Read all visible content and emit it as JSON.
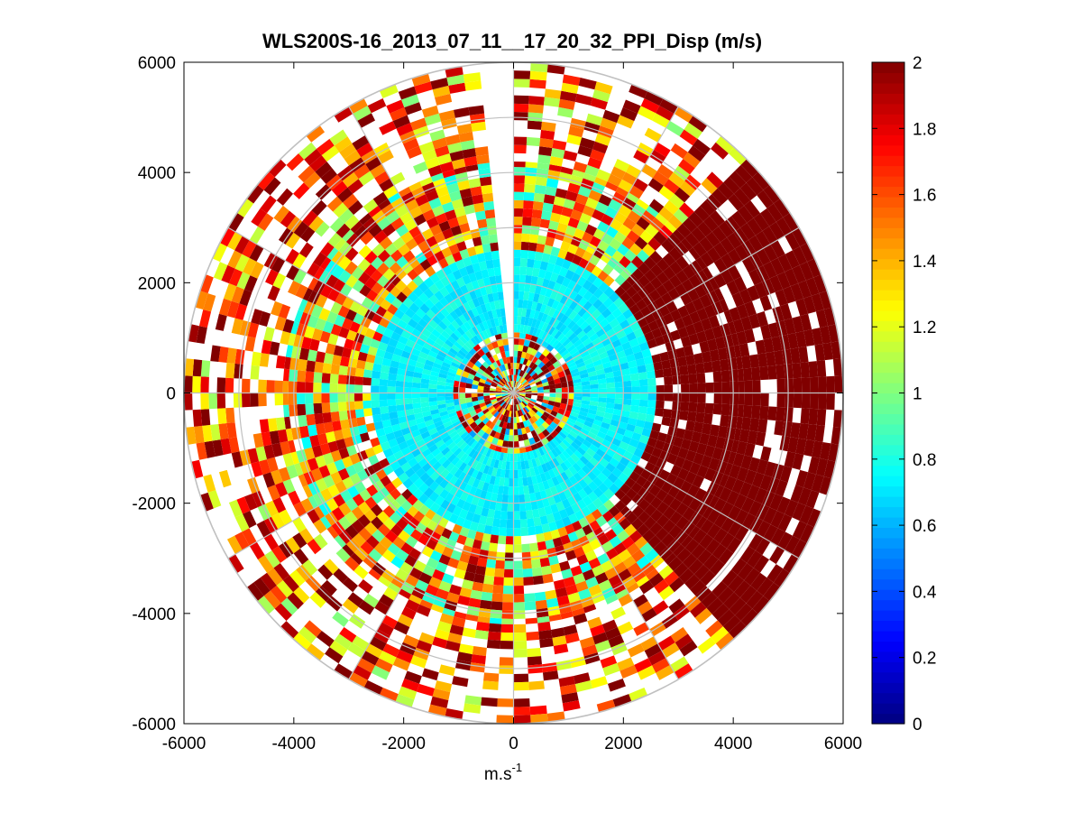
{
  "chart_data": {
    "type": "heatmap",
    "title": "WLS200S-16_2013_07_11__17_20_32_PPI_Disp (m/s)",
    "xlabel_base": "m.s",
    "xlabel_sup": "-1",
    "ylabel": "",
    "xlim": [
      -6000,
      6000
    ],
    "ylim": [
      -6000,
      6000
    ],
    "xticks": [
      -6000,
      -4000,
      -2000,
      0,
      2000,
      4000,
      6000
    ],
    "yticks": [
      -6000,
      -4000,
      -2000,
      0,
      2000,
      4000,
      6000
    ],
    "xtick_labels": [
      "-6000",
      "-4000",
      "-2000",
      "0",
      "2000",
      "4000",
      "6000"
    ],
    "ytick_labels": [
      "-6000",
      "-4000",
      "-2000",
      "0",
      "2000",
      "4000",
      "6000"
    ],
    "polar_grid": {
      "rings_m": [
        1000,
        2000,
        3000,
        4000,
        5000,
        6000
      ],
      "spokes_deg": [
        0,
        30,
        60,
        90,
        120,
        150,
        180,
        210,
        240,
        270,
        300,
        330
      ]
    },
    "max_range_m": 6000,
    "missing_sector_deg": [
      -6,
      0
    ],
    "colorbar": {
      "colormap": "jet",
      "clim": [
        0,
        2
      ],
      "ticks": [
        0,
        0.2,
        0.4,
        0.6,
        0.8,
        1,
        1.2,
        1.4,
        1.6,
        1.8,
        2
      ],
      "tick_labels": [
        "0",
        "0.2",
        "0.4",
        "0.6",
        "0.8",
        "1",
        "1.2",
        "1.4",
        "1.6",
        "1.8",
        "2"
      ]
    },
    "range_bands": [
      {
        "r_min": 0,
        "r_max": 1100,
        "mean": 1.5,
        "spread": 1.0,
        "coverage": 0.95
      },
      {
        "r_min": 1100,
        "r_max": 2600,
        "mean": 0.74,
        "spread": 0.08,
        "coverage": 1.0
      },
      {
        "r_min": 2600,
        "r_max": 4200,
        "mean": 1.4,
        "spread": 0.65,
        "coverage": 0.93
      },
      {
        "r_min": 4200,
        "r_max": 6000,
        "mean": 1.6,
        "spread": 0.6,
        "coverage": 0.6
      }
    ],
    "dense_sector": {
      "az_from_deg": 45,
      "az_to_deg": 135,
      "r_min": 2600,
      "r_max": 6000,
      "value": 2.0
    }
  }
}
